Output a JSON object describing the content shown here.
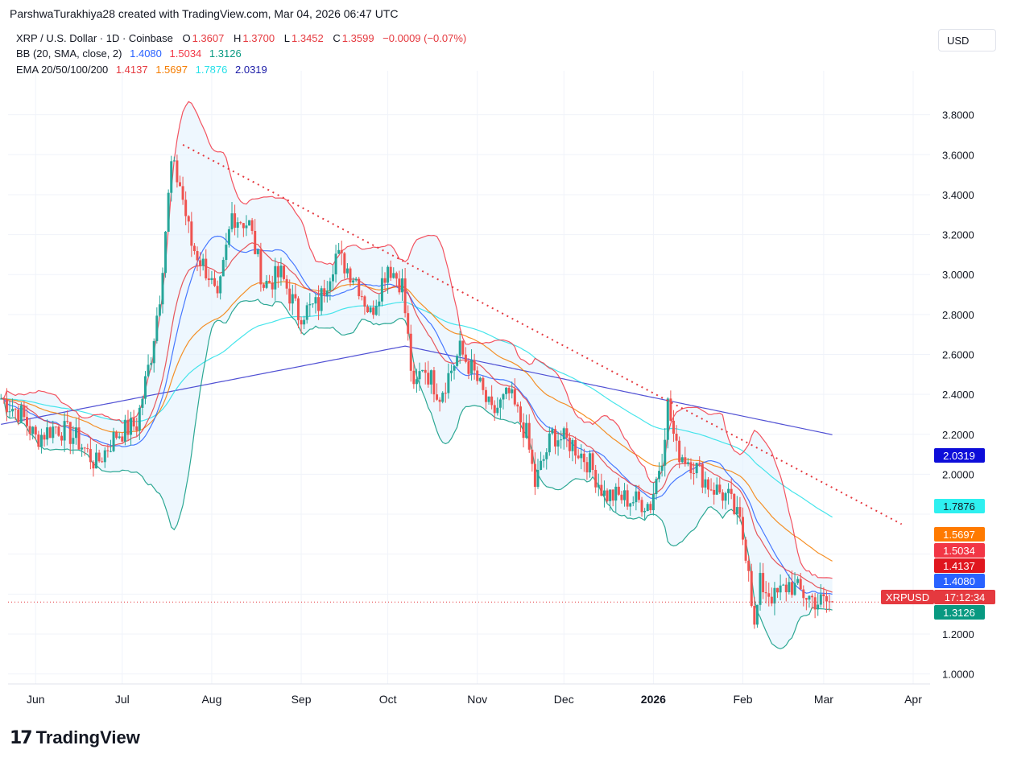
{
  "attribution": "ParshwaTurakhiya28 created with TradingView.com, Mar 04, 2026 06:47 UTC",
  "legend": {
    "symbol": "XRP / U.S. Dollar · 1D · Coinbase",
    "o_label": "O",
    "o_value": "1.3607",
    "h_label": "H",
    "h_value": "1.3700",
    "l_label": "L",
    "l_value": "1.3452",
    "c_label": "C",
    "c_value": "1.3599",
    "change": "−0.0009 (−0.07%)",
    "bb_label": "BB (20, SMA, close, 2)",
    "bb_basis": "1.4080",
    "bb_upper": "1.5034",
    "bb_lower": "1.3126",
    "ema_label": "EMA 20/50/100/200",
    "ema20": "1.4137",
    "ema50": "1.5697",
    "ema100": "1.7876",
    "ema200": "2.0319"
  },
  "currency_button": "USD",
  "brand": "TradingView",
  "colors": {
    "candle_up": "#26a69a",
    "candle_down": "#ef5350",
    "bb_basis": "#2962ff",
    "bb_upper": "#f23645",
    "bb_lower": "#089981",
    "bb_fill": "#e3f2fd",
    "ema20": "#e5393f",
    "ema50": "#f57c00",
    "ema100": "#26e0e8",
    "ema200": "#3333cc",
    "trendline": "#e5393f",
    "price_line": "#e5393f"
  },
  "chart_data": {
    "type": "candlestick",
    "title": "XRP / U.S. Dollar · 1D · Coinbase",
    "x_ticks": [
      "Jun",
      "Jul",
      "Aug",
      "Sep",
      "Oct",
      "Nov",
      "Dec",
      "2026",
      "Feb",
      "Mar",
      "Apr"
    ],
    "y_ticks": [
      1.0,
      1.2,
      1.4,
      1.6,
      1.8,
      2.0,
      2.2,
      2.4,
      2.6,
      2.8,
      3.0,
      3.2,
      3.4,
      3.6,
      3.8
    ],
    "y_tick_labels": [
      "1.0000",
      "1.2000",
      "",
      "",
      "",
      "2.0000",
      "2.2000",
      "2.4000",
      "2.6000",
      "2.8000",
      "3.0000",
      "3.2000",
      "3.4000",
      "3.6000",
      "3.8000"
    ],
    "ylim": [
      0.95,
      3.98
    ],
    "price_points": [
      [
        "2025-05-20",
        2.38
      ],
      [
        "2025-05-27",
        2.3
      ],
      [
        "2025-06-01",
        2.18
      ],
      [
        "2025-06-08",
        2.24
      ],
      [
        "2025-06-15",
        2.18
      ],
      [
        "2025-06-22",
        2.05
      ],
      [
        "2025-06-29",
        2.2
      ],
      [
        "2025-07-06",
        2.25
      ],
      [
        "2025-07-11",
        2.6
      ],
      [
        "2025-07-14",
        2.9
      ],
      [
        "2025-07-18",
        3.55
      ],
      [
        "2025-07-21",
        3.45
      ],
      [
        "2025-07-25",
        3.15
      ],
      [
        "2025-07-31",
        3.0
      ],
      [
        "2025-08-03",
        2.85
      ],
      [
        "2025-08-08",
        3.3
      ],
      [
        "2025-08-14",
        3.25
      ],
      [
        "2025-08-19",
        2.95
      ],
      [
        "2025-08-25",
        3.0
      ],
      [
        "2025-08-31",
        2.8
      ],
      [
        "2025-09-07",
        2.85
      ],
      [
        "2025-09-13",
        3.1
      ],
      [
        "2025-09-20",
        2.98
      ],
      [
        "2025-09-25",
        2.8
      ],
      [
        "2025-10-01",
        3.05
      ],
      [
        "2025-10-06",
        2.95
      ],
      [
        "2025-10-10",
        2.4
      ],
      [
        "2025-10-13",
        2.55
      ],
      [
        "2025-10-19",
        2.4
      ],
      [
        "2025-10-26",
        2.62
      ],
      [
        "2025-10-31",
        2.5
      ],
      [
        "2025-11-06",
        2.3
      ],
      [
        "2025-11-12",
        2.4
      ],
      [
        "2025-11-18",
        2.2
      ],
      [
        "2025-11-21",
        1.95
      ],
      [
        "2025-11-27",
        2.2
      ],
      [
        "2025-12-04",
        2.15
      ],
      [
        "2025-12-10",
        2.05
      ],
      [
        "2025-12-15",
        1.9
      ],
      [
        "2025-12-22",
        1.88
      ],
      [
        "2025-12-31",
        1.85
      ],
      [
        "2026-01-04",
        2.1
      ],
      [
        "2026-01-06",
        2.35
      ],
      [
        "2026-01-09",
        2.12
      ],
      [
        "2026-01-15",
        2.05
      ],
      [
        "2026-01-20",
        1.95
      ],
      [
        "2026-01-27",
        1.88
      ],
      [
        "2026-01-31",
        1.75
      ],
      [
        "2026-02-03",
        1.55
      ],
      [
        "2026-02-05",
        1.22
      ],
      [
        "2026-02-07",
        1.45
      ],
      [
        "2026-02-12",
        1.38
      ],
      [
        "2026-02-17",
        1.45
      ],
      [
        "2026-02-22",
        1.4
      ],
      [
        "2026-02-27",
        1.36
      ],
      [
        "2026-03-04",
        1.36
      ]
    ],
    "series": [
      {
        "name": "BB Basis (20, SMA)",
        "last": 1.408
      },
      {
        "name": "BB Upper",
        "last": 1.5034
      },
      {
        "name": "BB Lower",
        "last": 1.3126
      },
      {
        "name": "EMA 20",
        "last": 1.4137
      },
      {
        "name": "EMA 50",
        "last": 1.5697
      },
      {
        "name": "EMA 100",
        "last": 1.7876
      },
      {
        "name": "EMA 200",
        "last": 2.0319
      }
    ],
    "last_price": 1.3599,
    "symbol_label": "XRPUSD",
    "countdown": "17:12:34",
    "trendline": [
      [
        "2025-07-22",
        3.65
      ],
      [
        "2026-03-28",
        1.75
      ]
    ]
  }
}
